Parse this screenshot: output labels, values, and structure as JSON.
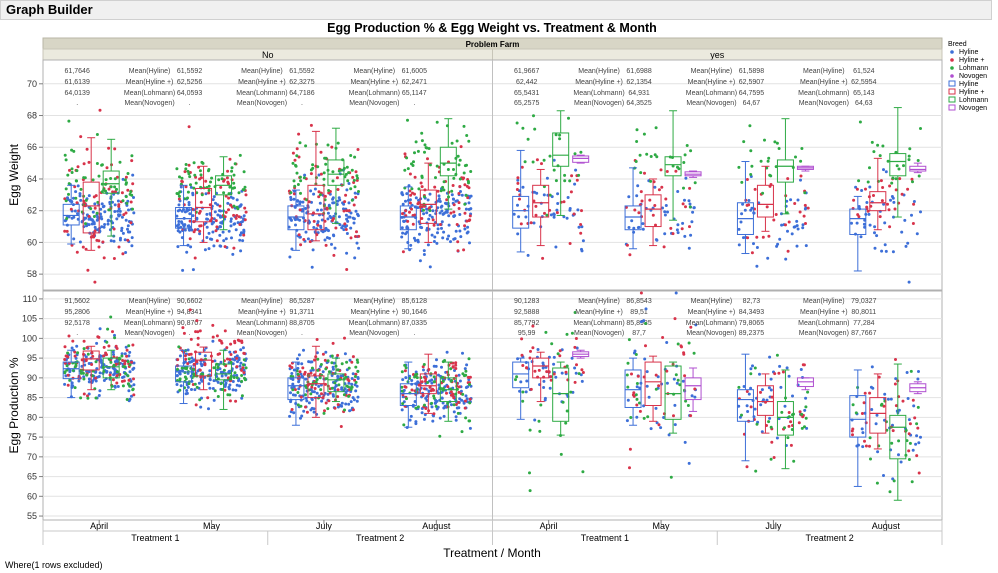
{
  "app": {
    "title": "Graph Builder"
  },
  "footer_note": "Where(1 rows excluded)",
  "colors": {
    "Hyline": "#3d6fd8",
    "Hyline +": "#d8334a",
    "Lohmann": "#2eaa44",
    "Novogen": "#b04fd0"
  },
  "chart_data": {
    "type": "box",
    "title": "Egg Production % & Egg Weight vs. Treatment & Month",
    "group_title": "Problem Farm",
    "groups": [
      "No",
      "yes"
    ],
    "xlabel": "Treatment / Month",
    "months": [
      "April",
      "May",
      "July",
      "August"
    ],
    "treatments": [
      "Treatment 1",
      "Treatment 1",
      "Treatment 2",
      "Treatment 2"
    ],
    "legend_title": "Breed",
    "legend_items": [
      {
        "label": "Hyline",
        "marker": "dot",
        "color": "#3d6fd8"
      },
      {
        "label": "Hyline +",
        "marker": "dot",
        "color": "#d8334a"
      },
      {
        "label": "Lohmann",
        "marker": "dot",
        "color": "#2eaa44"
      },
      {
        "label": "Novogen",
        "marker": "dot",
        "color": "#b04fd0"
      },
      {
        "label": "Hyline",
        "marker": "box",
        "color": "#3d6fd8"
      },
      {
        "label": "Hyline +",
        "marker": "box",
        "color": "#d8334a"
      },
      {
        "label": "Lohmann",
        "marker": "box",
        "color": "#2eaa44"
      },
      {
        "label": "Novogen",
        "marker": "box",
        "color": "#b04fd0"
      }
    ],
    "mean_labels": [
      "Mean(Hyline)",
      "Mean(Hyline +)",
      "Mean(Lohmann)",
      "Mean(Novogen)"
    ],
    "panels": [
      {
        "ylabel": "Egg Weight",
        "ylim": [
          57,
          71.5
        ],
        "ticks": [
          58,
          60,
          62,
          64,
          66,
          68,
          70
        ],
        "means": {
          "No": [
            [
              "61,7646",
              "61,6139",
              "64,0139",
              "."
            ],
            [
              "61,5592",
              "62,5256",
              "64,0593",
              "."
            ],
            [
              "61,5592",
              "62,3275",
              "64,7186",
              "."
            ],
            [
              "61,6005",
              "62,2471",
              "65,1147",
              "."
            ]
          ],
          "yes": [
            [
              "61,9667",
              "62,442",
              "65,5431",
              "65,2575"
            ],
            [
              "61,6988",
              "62,1354",
              "64,931",
              "64,3525"
            ],
            [
              "61,5898",
              "62,5907",
              "64,7595",
              "64,67"
            ],
            [
              "61,524",
              "62,5954",
              "65,143",
              "64,63"
            ]
          ]
        },
        "boxes": {
          "No": [
            [
              [
                59.9,
                61.1,
                61.7,
                62.4,
                63.6
              ],
              [
                59.5,
                60.6,
                62.3,
                63.8,
                66.6
              ],
              [
                60.4,
                63.1,
                63.7,
                64.5,
                66.5
              ],
              null
            ],
            [
              [
                59.8,
                60.9,
                61.5,
                62.2,
                63.6
              ],
              [
                60.0,
                61.3,
                62.2,
                63.4,
                64.8
              ],
              [
                60.8,
                63.0,
                63.6,
                64.2,
                65.4
              ],
              null
            ],
            [
              [
                59.5,
                60.8,
                61.6,
                62.3,
                63.3
              ],
              [
                60.1,
                60.8,
                61.8,
                63.6,
                67.0
              ],
              [
                61.2,
                63.6,
                64.3,
                65.2,
                67.2
              ],
              null
            ],
            [
              [
                59.6,
                60.8,
                61.6,
                62.3,
                63.5
              ],
              [
                60.0,
                61.2,
                62.4,
                63.3,
                65.0
              ],
              [
                62.1,
                64.2,
                65.0,
                66.0,
                67.8
              ],
              null
            ]
          ],
          "yes": [
            [
              [
                59.4,
                60.9,
                62.0,
                62.9,
                65.8
              ],
              [
                59.8,
                61.6,
                62.5,
                63.6,
                64.6
              ],
              [
                61.7,
                64.8,
                65.5,
                66.9,
                68.3
              ],
              [
                65.0,
                65.05,
                65.3,
                65.45,
                65.5
              ]
            ],
            [
              [
                59.6,
                60.8,
                61.6,
                62.3,
                64.7
              ],
              [
                59.8,
                61.0,
                62.1,
                63.0,
                64.0
              ],
              [
                61.4,
                64.2,
                64.9,
                65.4,
                68.3
              ],
              [
                64.1,
                64.2,
                64.3,
                64.45,
                64.5
              ]
            ],
            [
              [
                59.3,
                60.5,
                61.5,
                62.5,
                65.1
              ],
              [
                60.7,
                61.6,
                62.4,
                63.6,
                64.8
              ],
              [
                61.8,
                63.8,
                64.8,
                65.2,
                67.8
              ],
              [
                64.5,
                64.6,
                64.7,
                64.8,
                64.8
              ]
            ],
            [
              [
                58.2,
                60.5,
                61.5,
                62.1,
                62.9
              ],
              [
                60.8,
                62.0,
                62.5,
                63.2,
                65.3
              ],
              [
                61.6,
                64.2,
                65.1,
                65.6,
                68.5
              ],
              [
                64.4,
                64.5,
                64.6,
                64.8,
                65.0
              ]
            ]
          ]
        }
      },
      {
        "ylabel": "Egg Production %",
        "ylim": [
          54,
          112
        ],
        "ticks": [
          55,
          60,
          65,
          70,
          75,
          80,
          85,
          90,
          95,
          100,
          105,
          110
        ],
        "means": {
          "No": [
            [
              "91,5602",
              "95,2806",
              "92,5178",
              "."
            ],
            [
              "90,6602",
              "94,8341",
              "90,8707",
              "."
            ],
            [
              "86,5287",
              "91,3711",
              "88,8705",
              "."
            ],
            [
              "85,6128",
              "90,1646",
              "87,0335",
              "."
            ]
          ],
          "yes": [
            [
              "90,1283",
              "92,5888",
              "85,7792",
              "95,99"
            ],
            [
              "86,8543",
              "89,51",
              "85,8985",
              "87,7"
            ],
            [
              "82,73",
              "84,3493",
              "79,8065",
              "89,2375"
            ],
            [
              "79,0327",
              "80,8011",
              "77,284",
              "87,7667"
            ]
          ]
        },
        "boxes": {
          "No": [
            [
              [
                85.0,
                89.8,
                92.3,
                94.0,
                97.0
              ],
              [
                87.0,
                92.0,
                94.8,
                96.8,
                98.0
              ],
              [
                87.0,
                90.0,
                92.8,
                95.0,
                97.0
              ],
              null
            ],
            [
              [
                83.5,
                89.0,
                91.5,
                93.0,
                97.0
              ],
              [
                87.0,
                90.5,
                94.5,
                96.5,
                97.8
              ],
              [
                82.0,
                89.5,
                91.0,
                93.5,
                97.0
              ],
              null
            ],
            [
              [
                78.0,
                84.5,
                88.0,
                90.0,
                94.0
              ],
              [
                80.0,
                85.0,
                88.5,
                90.5,
                98.0
              ],
              [
                84.0,
                86.5,
                89.5,
                91.0,
                95.0
              ],
              null
            ],
            [
              [
                77.5,
                83.0,
                86.0,
                88.5,
                94.0
              ],
              [
                81.0,
                86.0,
                88.0,
                91.0,
                96.0
              ],
              [
                79.0,
                84.0,
                87.0,
                90.0,
                94.0
              ],
              null
            ]
          ],
          "yes": [
            [
              [
                79.5,
                87.5,
                91.0,
                94.0,
                95.0
              ],
              [
                84.0,
                90.0,
                93.0,
                95.0,
                96.5
              ],
              [
                75.5,
                79.0,
                86.0,
                92.5,
                94.0
              ],
              [
                95.0,
                95.4,
                96.0,
                96.6,
                97.0
              ]
            ],
            [
              [
                78.0,
                82.5,
                87.0,
                92.0,
                95.0
              ],
              [
                79.0,
                83.0,
                89.0,
                94.0,
                95.5
              ],
              [
                76.0,
                79.5,
                86.0,
                93.0,
                94.0
              ],
              [
                81.5,
                84.5,
                88.0,
                90.0,
                92.5
              ]
            ],
            [
              [
                69.0,
                79.0,
                84.5,
                87.0,
                96.0
              ],
              [
                76.0,
                80.5,
                84.0,
                88.0,
                91.0
              ],
              [
                67.0,
                75.5,
                80.0,
                84.0,
                92.0
              ],
              [
                87.0,
                87.8,
                89.0,
                90.0,
                90.0
              ]
            ],
            [
              [
                62.5,
                75.0,
                79.5,
                85.5,
                92.0
              ],
              [
                72.0,
                76.0,
                81.0,
                85.0,
                91.0
              ],
              [
                59.0,
                69.5,
                77.5,
                80.5,
                93.5
              ],
              [
                86.0,
                86.5,
                87.5,
                88.5,
                89.0
              ]
            ]
          ]
        }
      }
    ]
  }
}
